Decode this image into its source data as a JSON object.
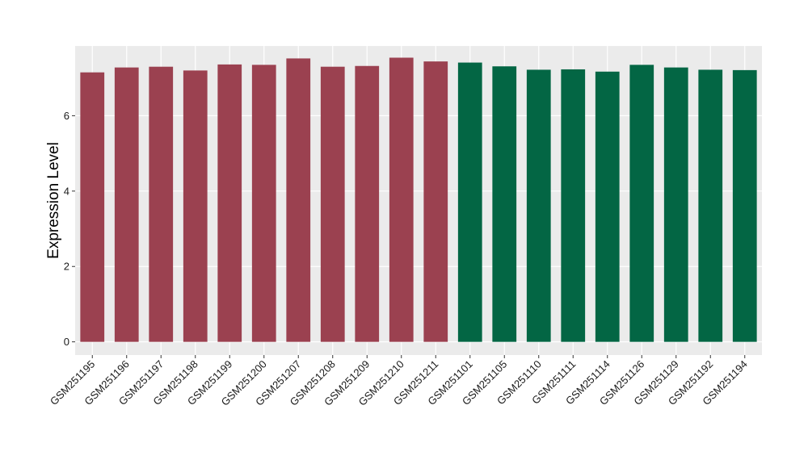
{
  "chart_data": {
    "type": "bar",
    "title": "",
    "xlabel": "",
    "ylabel": "Expression Level",
    "ylim": [
      -0.35,
      7.85
    ],
    "yticks": [
      0,
      2,
      4,
      6
    ],
    "grid": true,
    "legend": "none",
    "panel_background": "#ebebeb",
    "categories": [
      "GSM251195",
      "GSM251196",
      "GSM251197",
      "GSM251198",
      "GSM251199",
      "GSM251200",
      "GSM251207",
      "GSM251208",
      "GSM251209",
      "GSM251210",
      "GSM251211",
      "GSM251101",
      "GSM251105",
      "GSM251110",
      "GSM251111",
      "GSM251114",
      "GSM251126",
      "GSM251129",
      "GSM251192",
      "GSM251194"
    ],
    "values": [
      7.15,
      7.28,
      7.3,
      7.2,
      7.36,
      7.35,
      7.52,
      7.3,
      7.32,
      7.54,
      7.44,
      7.41,
      7.31,
      7.22,
      7.23,
      7.17,
      7.35,
      7.28,
      7.22,
      7.21
    ],
    "group_colors": [
      "#9b4150",
      "#9b4150",
      "#9b4150",
      "#9b4150",
      "#9b4150",
      "#9b4150",
      "#9b4150",
      "#9b4150",
      "#9b4150",
      "#9b4150",
      "#9b4150",
      "#036644",
      "#036644",
      "#036644",
      "#036644",
      "#036644",
      "#036644",
      "#036644",
      "#036644",
      "#036644"
    ]
  }
}
